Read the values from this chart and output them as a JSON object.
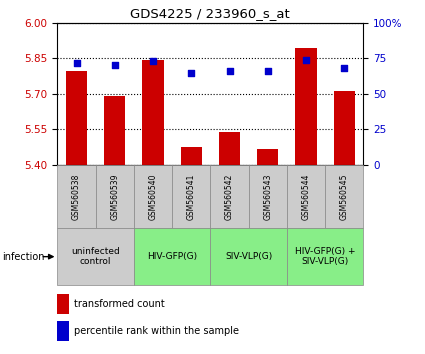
{
  "title": "GDS4225 / 233960_s_at",
  "samples": [
    "GSM560538",
    "GSM560539",
    "GSM560540",
    "GSM560541",
    "GSM560542",
    "GSM560543",
    "GSM560544",
    "GSM560545"
  ],
  "bar_values": [
    5.795,
    5.69,
    5.843,
    5.473,
    5.537,
    5.465,
    5.895,
    5.71
  ],
  "percentile_values": [
    72,
    70,
    73,
    65,
    66,
    66,
    74,
    68
  ],
  "ylim_left": [
    5.4,
    6.0
  ],
  "yticks_left": [
    5.4,
    5.55,
    5.7,
    5.85,
    6.0
  ],
  "ylim_right": [
    0,
    100
  ],
  "yticks_right": [
    0,
    25,
    50,
    75,
    100
  ],
  "ytick_labels_right": [
    "0",
    "25",
    "50",
    "75",
    "100%"
  ],
  "bar_color": "#cc0000",
  "dot_color": "#0000cc",
  "bar_width": 0.55,
  "groups": [
    {
      "label": "uninfected\ncontrol",
      "start": 0,
      "end": 2,
      "color": "#cccccc"
    },
    {
      "label": "HIV-GFP(G)",
      "start": 2,
      "end": 4,
      "color": "#88ee88"
    },
    {
      "label": "SIV-VLP(G)",
      "start": 4,
      "end": 6,
      "color": "#88ee88"
    },
    {
      "label": "HIV-GFP(G) +\nSIV-VLP(G)",
      "start": 6,
      "end": 8,
      "color": "#88ee88"
    }
  ],
  "infection_label": "infection",
  "legend_bar_label": "transformed count",
  "legend_dot_label": "percentile rank within the sample",
  "ylabel_left_color": "#cc0000",
  "ylabel_right_color": "#0000cc",
  "sample_box_color": "#cccccc",
  "sample_box_edge": "#888888"
}
